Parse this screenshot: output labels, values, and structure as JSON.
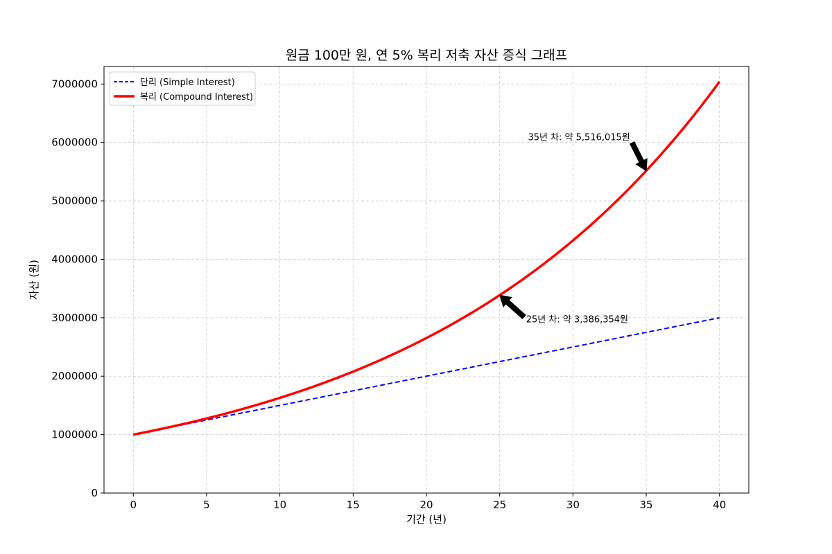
{
  "chart_data": {
    "type": "line",
    "title": "원금 100만 원, 연 5% 복리 저축 자산 증식 그래프",
    "xlabel": "기간 (년)",
    "ylabel": "자산 (원)",
    "xlim": [
      -2,
      42
    ],
    "ylim": [
      0,
      7300000
    ],
    "xticks": [
      0,
      5,
      10,
      15,
      20,
      25,
      30,
      35,
      40
    ],
    "xtick_labels": [
      "0",
      "5",
      "10",
      "15",
      "20",
      "25",
      "30",
      "35",
      "40"
    ],
    "yticks": [
      0,
      1000000,
      2000000,
      3000000,
      4000000,
      5000000,
      6000000,
      7000000
    ],
    "ytick_labels": [
      "0",
      "1000000",
      "2000000",
      "3000000",
      "4000000",
      "5000000",
      "6000000",
      "7000000"
    ],
    "grid": true,
    "legend_position": "upper-left",
    "principal": 1000000,
    "rate": 0.05,
    "x_range": [
      0,
      40
    ],
    "series": [
      {
        "name": "단리 (Simple Interest)",
        "kind": "simple",
        "color": "#0000ff",
        "style": "dashed",
        "x": [
          0,
          40
        ],
        "values": [
          1000000,
          3000000
        ]
      },
      {
        "name": "복리 (Compound Interest)",
        "kind": "compound",
        "color": "#ff0000",
        "style": "solid",
        "x": [
          0,
          5,
          10,
          15,
          20,
          25,
          30,
          35,
          40
        ],
        "values": [
          1000000,
          1276282,
          1628895,
          2078928,
          2653298,
          3386355,
          4321942,
          5516015,
          7039989
        ]
      }
    ],
    "annotations": [
      {
        "text": "25년 차: 약 3,386,354원",
        "x": 25,
        "y": 3386354,
        "text_x": 26.8,
        "text_y": 2920000,
        "side": "right"
      },
      {
        "text": "35년 차: 약 5,516,015원",
        "x": 35,
        "y": 5516015,
        "text_x": 33.9,
        "text_y": 6040000,
        "side": "left"
      }
    ]
  }
}
